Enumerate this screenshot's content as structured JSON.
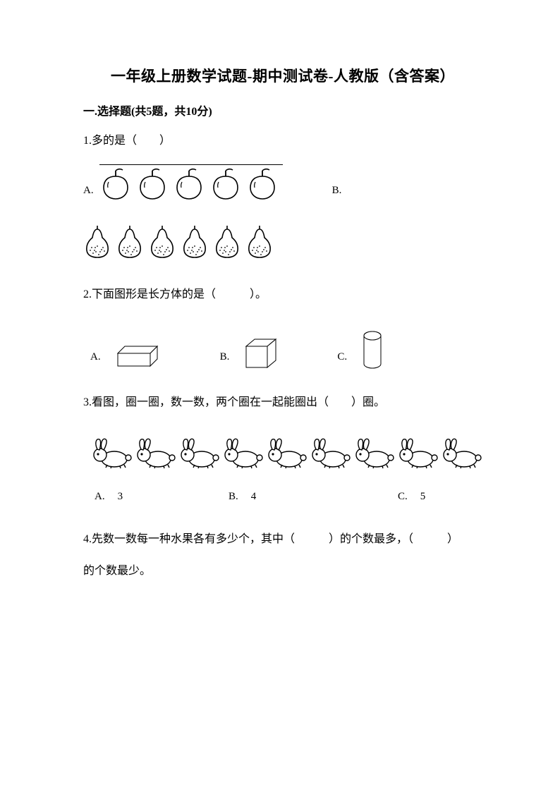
{
  "title": "一年级上册数学试题-期中测试卷-人教版（含答案）",
  "section1": {
    "header": "一.选择题(共5题，共10分)",
    "q1": {
      "text": "1.多的是（　　）",
      "optA": "A.",
      "optB": "B.",
      "apples_count": 5,
      "pears_count": 6
    },
    "q2": {
      "text": "2.下面图形是长方体的是（　　　）。",
      "optA": "A.",
      "optB": "B.",
      "optC": "C."
    },
    "q3": {
      "text": "3.看图，圈一圈，数一数，两个圈在一起能圈出（　　）圈。",
      "rabbits_count": 9,
      "optA_label": "A.",
      "optA_val": "3",
      "optB_label": "B.",
      "optB_val": "4",
      "optC_label": "C.",
      "optC_val": "5"
    },
    "q4": {
      "line1": "4.先数一数每一种水果各有多少个，其中（　　　）的个数最多，（　　　）",
      "line2": "的个数最少。"
    }
  },
  "icons": {
    "apple": "apple-icon",
    "pear": "pear-icon",
    "cuboid": "cuboid-icon",
    "cube": "cube-icon",
    "cylinder": "cylinder-icon",
    "rabbit": "rabbit-icon"
  }
}
